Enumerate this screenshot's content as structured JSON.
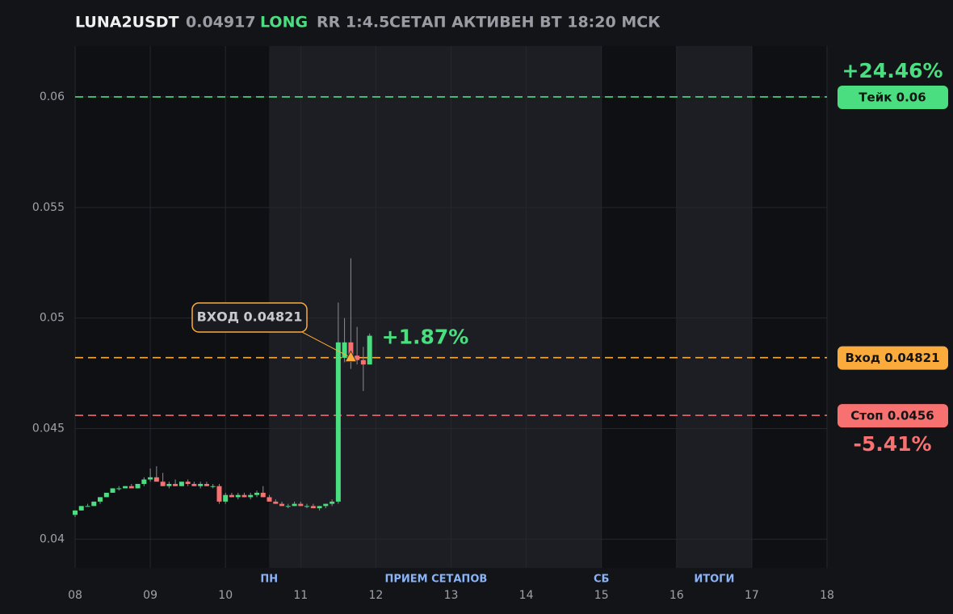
{
  "header": {
    "symbol": "LUNA2USDT",
    "price": "0.04917",
    "side": "LONG",
    "rr": "RR 1:4.5",
    "status": "СЕТАП АКТИВЕН ВТ 18:20 МСК"
  },
  "chart_data": {
    "type": "candlestick",
    "x": [
      8,
      8.083,
      8.167,
      8.25,
      8.333,
      8.417,
      8.5,
      8.583,
      8.667,
      8.75,
      8.833,
      8.917,
      9,
      9.083,
      9.167,
      9.25,
      9.333,
      9.417,
      9.5,
      9.583,
      9.667,
      9.75,
      9.833,
      9.917,
      10,
      10.083,
      10.167,
      10.25,
      10.333,
      10.417,
      10.5,
      10.583,
      10.667,
      10.75,
      10.833,
      10.917,
      11,
      11.083,
      11.167,
      11.25,
      11.333,
      11.417,
      11.5,
      11.583,
      11.667,
      11.75,
      11.833,
      11.917
    ],
    "open": [
      0.0411,
      0.0413,
      0.0415,
      0.0415,
      0.0417,
      0.0419,
      0.0421,
      0.0423,
      0.0423,
      0.0424,
      0.0423,
      0.0425,
      0.0427,
      0.0428,
      0.0426,
      0.0424,
      0.0425,
      0.0424,
      0.0426,
      0.0425,
      0.0424,
      0.0425,
      0.0424,
      0.0424,
      0.0417,
      0.042,
      0.0419,
      0.042,
      0.0419,
      0.042,
      0.0421,
      0.0419,
      0.0417,
      0.0416,
      0.0415,
      0.0415,
      0.0416,
      0.0415,
      0.0415,
      0.0414,
      0.0415,
      0.0416,
      0.0417,
      0.0482,
      0.0489,
      0.0483,
      0.0481,
      0.0479
    ],
    "high": [
      0.0413,
      0.0415,
      0.0416,
      0.0417,
      0.0419,
      0.0421,
      0.0423,
      0.0424,
      0.0424,
      0.0425,
      0.0425,
      0.0428,
      0.0432,
      0.0433,
      0.043,
      0.0426,
      0.0427,
      0.0426,
      0.0427,
      0.0426,
      0.0426,
      0.0426,
      0.0425,
      0.0425,
      0.0421,
      0.0421,
      0.0421,
      0.0421,
      0.0421,
      0.0422,
      0.0424,
      0.042,
      0.0418,
      0.0417,
      0.0416,
      0.0417,
      0.0417,
      0.0416,
      0.0416,
      0.0415,
      0.0416,
      0.0418,
      0.0507,
      0.05,
      0.0527,
      0.0496,
      0.0487,
      0.0493
    ],
    "low": [
      0.041,
      0.0413,
      0.0415,
      0.0415,
      0.0416,
      0.0419,
      0.0421,
      0.0422,
      0.0423,
      0.0423,
      0.0423,
      0.0424,
      0.0426,
      0.0427,
      0.0424,
      0.0423,
      0.0424,
      0.0424,
      0.0424,
      0.0424,
      0.0423,
      0.0424,
      0.0423,
      0.0416,
      0.0416,
      0.0419,
      0.0418,
      0.0419,
      0.0418,
      0.0419,
      0.0419,
      0.0417,
      0.0416,
      0.0415,
      0.0414,
      0.0415,
      0.0415,
      0.0414,
      0.0414,
      0.0413,
      0.0414,
      0.0415,
      0.0416,
      0.048,
      0.0477,
      0.0479,
      0.0467,
      0.0479
    ],
    "close": [
      0.0413,
      0.0415,
      0.0415,
      0.0417,
      0.0419,
      0.0421,
      0.0423,
      0.0423,
      0.0424,
      0.0423,
      0.0425,
      0.0427,
      0.0428,
      0.0426,
      0.0424,
      0.0425,
      0.0424,
      0.0426,
      0.0425,
      0.0424,
      0.0425,
      0.0424,
      0.0424,
      0.0417,
      0.042,
      0.0419,
      0.042,
      0.0419,
      0.042,
      0.0421,
      0.0419,
      0.0417,
      0.0416,
      0.0415,
      0.0415,
      0.0416,
      0.0415,
      0.0415,
      0.0414,
      0.0415,
      0.0416,
      0.0417,
      0.0489,
      0.0489,
      0.0483,
      0.0481,
      0.0479,
      0.0492
    ],
    "up_color": "#4ade80",
    "down_color": "#f87171",
    "xlim": [
      8,
      18
    ],
    "ylim": [
      0.0387,
      0.0623
    ],
    "xticks": [
      {
        "value": 8,
        "label": "08"
      },
      {
        "value": 9,
        "label": "09"
      },
      10,
      11,
      12,
      13,
      14,
      15,
      16,
      17,
      18
    ],
    "yticks": [
      0.04,
      0.045,
      0.05,
      0.055,
      0.06
    ],
    "grid": true,
    "shaded": [
      [
        10.58,
        15
      ],
      [
        16,
        17
      ]
    ],
    "session_labels": [
      {
        "x": 10.58,
        "label": "ПН"
      },
      {
        "x": 12.8,
        "label": "ПРИЕМ СЕТАПОВ"
      },
      {
        "x": 15,
        "label": "СБ"
      },
      {
        "x": 16.5,
        "label": "ИТОГИ"
      }
    ],
    "levels": [
      {
        "name": "Тейк 0.06",
        "value": 0.06,
        "color": "#4ade80",
        "change": "+24.46%",
        "change_side": "above"
      },
      {
        "name": "Вход 0.04821",
        "value": 0.04821,
        "color": "#fbab3c"
      },
      {
        "name": "Стоп 0.0456",
        "value": 0.0456,
        "color": "#f87171",
        "change": "-5.41%",
        "change_side": "below"
      }
    ],
    "entry_annotation": {
      "text": "ВХОД 0.04821",
      "x": 11.667,
      "y": 0.04821,
      "color": "#fbab3c"
    },
    "last_change": {
      "text": "+1.87%",
      "color": "#4ade80"
    }
  }
}
